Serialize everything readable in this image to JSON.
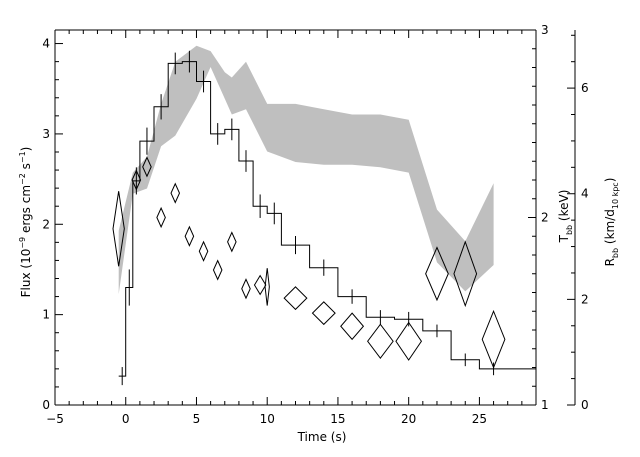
{
  "chart_data": {
    "type": "line",
    "title": "",
    "xlabel": "Time (s)",
    "ylabel_left": {
      "main": "Flux (10",
      "exp1": "−9",
      "mid": " ergs cm",
      "exp2": "−2",
      "mid2": " s",
      "exp3": "−1",
      "end": ")"
    },
    "ylabel_mid": {
      "main": "T",
      "sub": "bb",
      "end": " (keV)"
    },
    "ylabel_right": {
      "main": "R",
      "sub": "bb",
      "mid": " (km/d",
      "sub2": "10 kpc",
      "end": ")"
    },
    "xlim": [
      -5,
      29
    ],
    "ylim_flux": [
      0,
      4.15
    ],
    "ylim_tbb": [
      1,
      3
    ],
    "ylim_rbb": [
      0,
      7.1
    ],
    "x_ticks": [
      "−5",
      "0",
      "5",
      "10",
      "15",
      "20",
      "25"
    ],
    "x_tick_values": [
      -5,
      0,
      5,
      10,
      15,
      20,
      25
    ],
    "flux_ticks": [
      "0",
      "1",
      "2",
      "3",
      "4"
    ],
    "flux_tick_values": [
      0,
      1,
      2,
      3,
      4
    ],
    "tbb_ticks": [
      "1",
      "2",
      "3"
    ],
    "tbb_tick_values": [
      1,
      2,
      3
    ],
    "rbb_ticks": [
      "0",
      "2",
      "4",
      "6"
    ],
    "rbb_tick_values": [
      0,
      2,
      4,
      6
    ],
    "series": [
      {
        "kind": "flux-histogram",
        "axis": "flux",
        "points": [
          {
            "x0": -0.5,
            "x1": 0.0,
            "y": 0.32,
            "err": 0.1
          },
          {
            "x0": 0.0,
            "x1": 0.5,
            "y": 1.3,
            "err": 0.2
          },
          {
            "x0": 0.5,
            "x1": 1.0,
            "y": 2.48,
            "err": 0.15
          },
          {
            "x0": 1.0,
            "x1": 2.0,
            "y": 2.92,
            "err": 0.15
          },
          {
            "x0": 2.0,
            "x1": 3.0,
            "y": 3.3,
            "err": 0.14
          },
          {
            "x0": 3.0,
            "x1": 4.0,
            "y": 3.78,
            "err": 0.12
          },
          {
            "x0": 4.0,
            "x1": 5.0,
            "y": 3.8,
            "err": 0.12
          },
          {
            "x0": 5.0,
            "x1": 6.0,
            "y": 3.58,
            "err": 0.12
          },
          {
            "x0": 6.0,
            "x1": 7.0,
            "y": 3.0,
            "err": 0.12
          },
          {
            "x0": 7.0,
            "x1": 8.0,
            "y": 3.05,
            "err": 0.12
          },
          {
            "x0": 8.0,
            "x1": 9.0,
            "y": 2.7,
            "err": 0.12
          },
          {
            "x0": 9.0,
            "x1": 10.0,
            "y": 2.2,
            "err": 0.13
          },
          {
            "x0": 10.0,
            "x1": 11.0,
            "y": 2.12,
            "err": 0.12
          },
          {
            "x0": 11.0,
            "x1": 13.0,
            "y": 1.77,
            "err": 0.1
          },
          {
            "x0": 13.0,
            "x1": 15.0,
            "y": 1.52,
            "err": 0.09
          },
          {
            "x0": 15.0,
            "x1": 17.0,
            "y": 1.2,
            "err": 0.08
          },
          {
            "x0": 17.0,
            "x1": 19.0,
            "y": 0.97,
            "err": 0.08
          },
          {
            "x0": 19.0,
            "x1": 21.0,
            "y": 0.95,
            "err": 0.08
          },
          {
            "x0": 21.0,
            "x1": 23.0,
            "y": 0.82,
            "err": 0.07
          },
          {
            "x0": 23.0,
            "x1": 25.0,
            "y": 0.5,
            "err": 0.07
          },
          {
            "x0": 25.0,
            "x1": 27.0,
            "y": 0.4,
            "err": 0.07
          },
          {
            "x0": 27.0,
            "x1": 29.0,
            "y": 0.4,
            "err": 0.0
          }
        ]
      },
      {
        "kind": "tbb-diamonds",
        "axis": "tbb",
        "points": [
          {
            "x": -0.5,
            "y": 1.94,
            "dx": 0.4,
            "dy": 0.2
          },
          {
            "x": 0.75,
            "y": 2.2,
            "dx": 0.3,
            "dy": 0.05
          },
          {
            "x": 1.5,
            "y": 2.27,
            "dx": 0.3,
            "dy": 0.05
          },
          {
            "x": 2.5,
            "y": 2.0,
            "dx": 0.3,
            "dy": 0.05
          },
          {
            "x": 3.5,
            "y": 2.13,
            "dx": 0.3,
            "dy": 0.05
          },
          {
            "x": 4.5,
            "y": 1.9,
            "dx": 0.3,
            "dy": 0.05
          },
          {
            "x": 5.5,
            "y": 1.82,
            "dx": 0.3,
            "dy": 0.05
          },
          {
            "x": 6.5,
            "y": 1.72,
            "dx": 0.3,
            "dy": 0.05
          },
          {
            "x": 7.5,
            "y": 1.87,
            "dx": 0.3,
            "dy": 0.05
          },
          {
            "x": 8.5,
            "y": 1.62,
            "dx": 0.3,
            "dy": 0.05
          },
          {
            "x": 9.5,
            "y": 1.64,
            "dx": 0.4,
            "dy": 0.05
          },
          {
            "x": 10.0,
            "y": 1.63,
            "dx": 0.15,
            "dy": 0.1
          },
          {
            "x": 12.0,
            "y": 1.57,
            "dx": 0.8,
            "dy": 0.06
          },
          {
            "x": 14.0,
            "y": 1.49,
            "dx": 0.8,
            "dy": 0.06
          },
          {
            "x": 16.0,
            "y": 1.42,
            "dx": 0.8,
            "dy": 0.07
          },
          {
            "x": 18.0,
            "y": 1.34,
            "dx": 0.9,
            "dy": 0.09
          },
          {
            "x": 20.0,
            "y": 1.34,
            "dx": 0.9,
            "dy": 0.1
          },
          {
            "x": 22.0,
            "y": 1.7,
            "dx": 0.8,
            "dy": 0.14
          },
          {
            "x": 24.0,
            "y": 1.7,
            "dx": 0.8,
            "dy": 0.17
          },
          {
            "x": 26.0,
            "y": 1.35,
            "dx": 0.8,
            "dy": 0.15
          }
        ]
      },
      {
        "kind": "rbb-band",
        "axis": "rbb",
        "upper": [
          {
            "x": -0.5,
            "y": 3.3
          },
          {
            "x": 0.5,
            "y": 4.4
          },
          {
            "x": 1.5,
            "y": 4.7
          },
          {
            "x": 2.5,
            "y": 5.7
          },
          {
            "x": 3.5,
            "y": 6.5
          },
          {
            "x": 5.0,
            "y": 6.8
          },
          {
            "x": 6.0,
            "y": 6.7
          },
          {
            "x": 7.0,
            "y": 6.3
          },
          {
            "x": 7.5,
            "y": 6.2
          },
          {
            "x": 8.5,
            "y": 6.5
          },
          {
            "x": 10.0,
            "y": 5.7
          },
          {
            "x": 12.0,
            "y": 5.7
          },
          {
            "x": 14.0,
            "y": 5.6
          },
          {
            "x": 16.0,
            "y": 5.5
          },
          {
            "x": 18.0,
            "y": 5.5
          },
          {
            "x": 20.0,
            "y": 5.4
          },
          {
            "x": 22.0,
            "y": 3.7
          },
          {
            "x": 24.0,
            "y": 3.1
          },
          {
            "x": 26.0,
            "y": 4.2
          }
        ],
        "lower": [
          {
            "x": -0.5,
            "y": 2.1
          },
          {
            "x": 0.5,
            "y": 4.0
          },
          {
            "x": 1.5,
            "y": 4.1
          },
          {
            "x": 2.5,
            "y": 4.9
          },
          {
            "x": 3.5,
            "y": 5.1
          },
          {
            "x": 5.0,
            "y": 5.8
          },
          {
            "x": 6.0,
            "y": 6.4
          },
          {
            "x": 7.0,
            "y": 5.8
          },
          {
            "x": 7.5,
            "y": 5.5
          },
          {
            "x": 8.5,
            "y": 5.6
          },
          {
            "x": 10.0,
            "y": 4.8
          },
          {
            "x": 12.0,
            "y": 4.6
          },
          {
            "x": 14.0,
            "y": 4.55
          },
          {
            "x": 16.0,
            "y": 4.55
          },
          {
            "x": 18.0,
            "y": 4.5
          },
          {
            "x": 20.0,
            "y": 4.4
          },
          {
            "x": 22.0,
            "y": 2.7
          },
          {
            "x": 24.0,
            "y": 2.15
          },
          {
            "x": 26.0,
            "y": 2.65
          }
        ]
      }
    ],
    "colors": {
      "band": "#bfbfbf",
      "line": "#000000",
      "background": "#ffffff"
    },
    "grid": false,
    "legend": "none"
  }
}
